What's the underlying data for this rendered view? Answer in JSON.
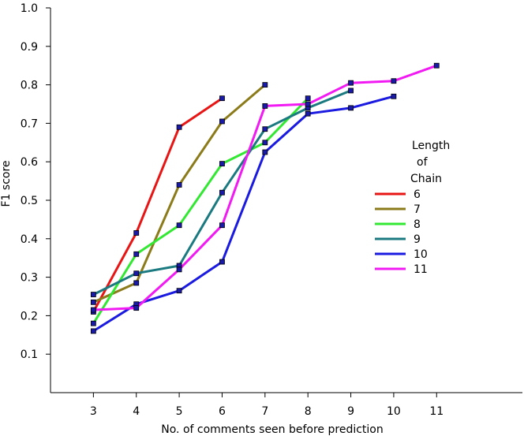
{
  "chart_data": {
    "type": "line",
    "title": "",
    "xlabel": "No. of comments seen before prediction",
    "ylabel": "F1 score",
    "xlim": [
      2,
      13
    ],
    "ylim": [
      0.0,
      1.0
    ],
    "xticks": [
      3,
      4,
      5,
      6,
      7,
      8,
      9,
      10,
      11
    ],
    "xtick_labels": [
      "3",
      "4",
      "5",
      "6",
      "7",
      "8",
      "9",
      "10",
      "11"
    ],
    "yticks": [
      0.1,
      0.2,
      0.3,
      0.4,
      0.5,
      0.6,
      0.7,
      0.8,
      0.9,
      1.0
    ],
    "ytick_labels": [
      "0.1",
      "0.2",
      "0.3",
      "0.4",
      "0.5",
      "0.6",
      "0.7",
      "0.8",
      "0.9",
      "1.0"
    ],
    "grid": false,
    "legend_title": [
      "Length",
      "of",
      "Chain"
    ],
    "legend_position": "right",
    "marker_color": "#1a1aa8",
    "series": [
      {
        "name": "6",
        "color": "#e81515",
        "x": [
          3,
          4,
          5,
          6
        ],
        "y": [
          0.21,
          0.415,
          0.69,
          0.765
        ]
      },
      {
        "name": "7",
        "color": "#8b7b1a",
        "x": [
          3,
          4,
          5,
          6,
          7
        ],
        "y": [
          0.235,
          0.285,
          0.54,
          0.705,
          0.8
        ]
      },
      {
        "name": "8",
        "color": "#33e833",
        "x": [
          3,
          4,
          5,
          6,
          7,
          8
        ],
        "y": [
          0.18,
          0.36,
          0.435,
          0.595,
          0.65,
          0.765
        ]
      },
      {
        "name": "9",
        "color": "#1a7a80",
        "x": [
          3,
          4,
          5,
          6,
          7,
          8,
          9
        ],
        "y": [
          0.255,
          0.31,
          0.33,
          0.52,
          0.685,
          0.74,
          0.785
        ]
      },
      {
        "name": "10",
        "color": "#1a1ae0",
        "x": [
          3,
          4,
          5,
          6,
          7,
          8,
          9,
          10
        ],
        "y": [
          0.16,
          0.23,
          0.265,
          0.34,
          0.625,
          0.725,
          0.74,
          0.77
        ]
      },
      {
        "name": "11",
        "color": "#f21af2",
        "x": [
          3,
          4,
          5,
          6,
          7,
          8,
          9,
          10,
          11
        ],
        "y": [
          0.215,
          0.22,
          0.32,
          0.435,
          0.745,
          0.75,
          0.805,
          0.81,
          0.85
        ]
      }
    ]
  }
}
